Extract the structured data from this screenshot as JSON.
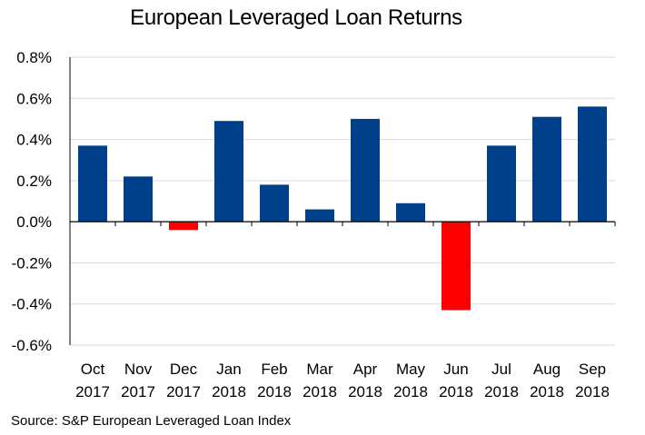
{
  "chart_data": {
    "type": "bar",
    "title": "European Leveraged Loan Returns",
    "categories": [
      [
        "Oct",
        "2017"
      ],
      [
        "Nov",
        "2017"
      ],
      [
        "Dec",
        "2017"
      ],
      [
        "Jan",
        "2018"
      ],
      [
        "Feb",
        "2018"
      ],
      [
        "Mar",
        "2018"
      ],
      [
        "Apr",
        "2018"
      ],
      [
        "May",
        "2018"
      ],
      [
        "Jun",
        "2018"
      ],
      [
        "Jul",
        "2018"
      ],
      [
        "Aug",
        "2018"
      ],
      [
        "Sep",
        "2018"
      ]
    ],
    "values": [
      0.37,
      0.22,
      -0.04,
      0.49,
      0.18,
      0.06,
      0.5,
      0.09,
      -0.43,
      0.37,
      0.51,
      0.56
    ],
    "ylim": [
      -0.6,
      0.8
    ],
    "yticks": [
      0.8,
      0.6,
      0.4,
      0.2,
      0.0,
      -0.2,
      -0.4,
      -0.6
    ],
    "ytick_labels": [
      "0.8%",
      "0.6%",
      "0.4%",
      "0.2%",
      "0.0%",
      "-0.2%",
      "-0.4%",
      "-0.6%"
    ],
    "xlabel": "",
    "ylabel": "",
    "grid": true,
    "colors": {
      "positive": "#003f8a",
      "negative": "#ff0000",
      "grid": "#d9d9d9",
      "axis": "#000000"
    }
  },
  "source_note": "Source: S&P European Leveraged Loan Index"
}
